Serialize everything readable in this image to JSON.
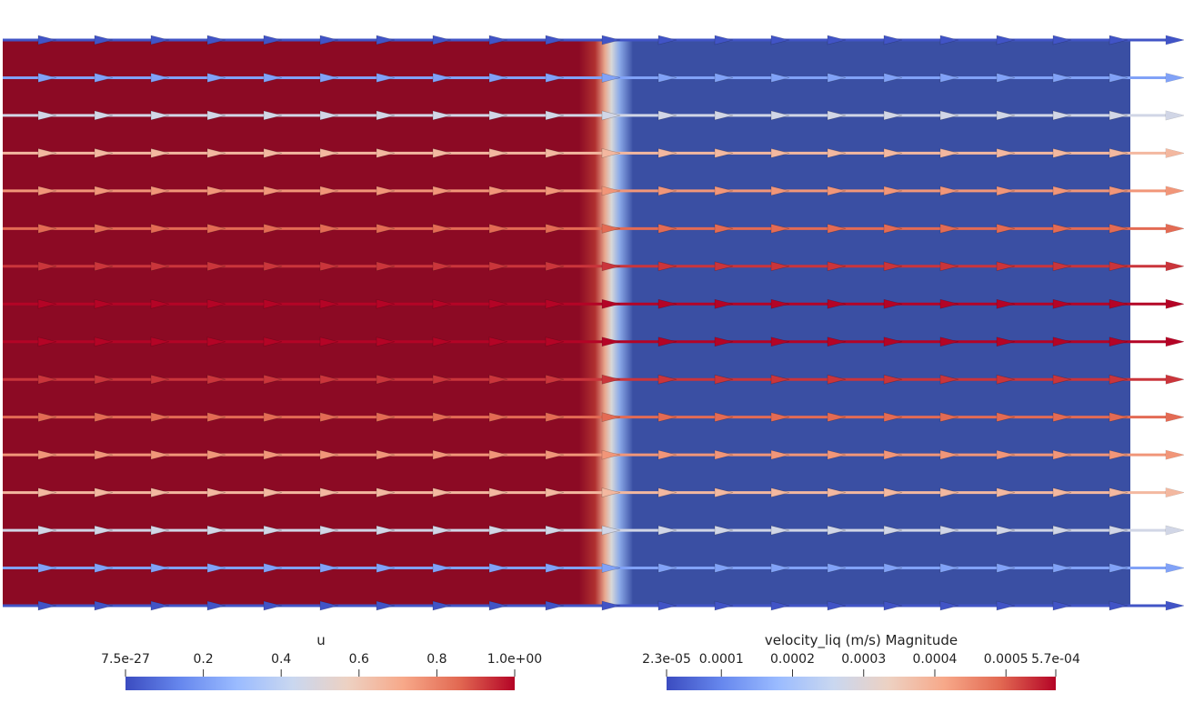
{
  "field": {
    "left_color": "#8c0a24",
    "right_color": "#3a4fa3",
    "front_fraction": 0.535
  },
  "colormap": {
    "name": "coolwarm",
    "stops": [
      "#3b4cc0",
      "#6788ee",
      "#9abbff",
      "#c9d7f0",
      "#edd1c2",
      "#f7a889",
      "#e26952",
      "#b40426"
    ]
  },
  "legend_u": {
    "title": "u",
    "tick_labels": [
      "7.5e-27",
      "0.2",
      "0.4",
      "0.6",
      "0.8",
      "1.0e+00"
    ],
    "tick_values": [
      0,
      0.2,
      0.4,
      0.6,
      0.8,
      1.0
    ],
    "range": [
      0,
      1.0
    ]
  },
  "legend_velocity": {
    "title": "velocity_liq (m/s) Magnitude",
    "tick_labels": [
      "2.3e-05",
      "0.0001",
      "0.0002",
      "0.0003",
      "0.0004",
      "0.0005",
      "5.7e-04"
    ],
    "tick_values": [
      2.3e-05,
      0.0001,
      0.0002,
      0.0003,
      0.0004,
      0.0005,
      0.00057
    ],
    "range": [
      2.3e-05,
      0.00057
    ]
  },
  "arrows": {
    "row_count": 16,
    "col_count": 21,
    "row_velocity_fraction": [
      0.0,
      0.2,
      0.45,
      0.65,
      0.75,
      0.85,
      0.93,
      1.0,
      1.0,
      0.93,
      0.85,
      0.75,
      0.65,
      0.45,
      0.2,
      0.0
    ]
  }
}
